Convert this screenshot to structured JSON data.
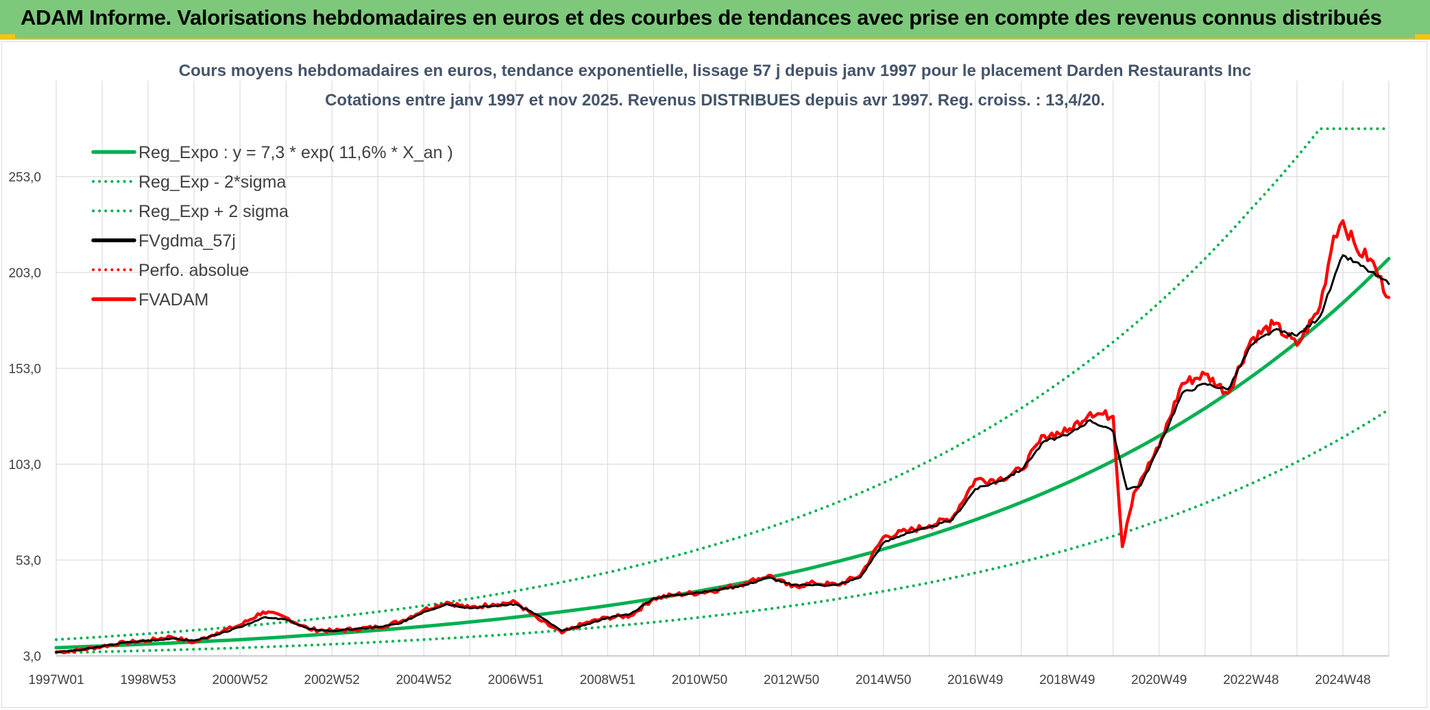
{
  "banner": {
    "title": "ADAM Informe. Valorisations hebdomadaires en euros et des courbes de tendances avec prise en compte des revenus connus distribués"
  },
  "chart_data": {
    "type": "line",
    "title": "Cours moyens hebdomadaires en euros, tendance exponentielle, lissage 57 j depuis janv 1997 pour le placement Darden Restaurants Inc",
    "subtitle": "Cotations entre janv 1997 et nov 2025. Revenus DISTRIBUES depuis avr 1997. Reg. croiss. : 13,4/20.",
    "xlabel": "",
    "ylabel": "",
    "x_ticks": [
      "1997W01",
      "1998W53",
      "2000W52",
      "2002W52",
      "2004W52",
      "2006W51",
      "2008W51",
      "2010W50",
      "2012W50",
      "2014W50",
      "2016W49",
      "2018W49",
      "2020W49",
      "2022W48",
      "2024W48"
    ],
    "x_tick_positions": [
      1997.0,
      1999.0,
      2001.0,
      2003.0,
      2005.0,
      2007.0,
      2009.0,
      2011.0,
      2013.0,
      2015.0,
      2017.0,
      2019.0,
      2021.0,
      2023.0,
      2025.0
    ],
    "x_range": [
      1997.0,
      2026.0
    ],
    "y_ticks": [
      "3,0",
      "53,0",
      "103,0",
      "153,0",
      "203,0",
      "253,0"
    ],
    "y_tick_values": [
      3,
      53,
      103,
      153,
      203,
      253
    ],
    "ylim": [
      3,
      303
    ],
    "grid": true,
    "legend_position": "top-left",
    "series": [
      {
        "name": "Reg_Expo : y = 7,3 * exp( 11,6% *  X_an )",
        "color": "#00b050",
        "style": "solid",
        "width": 5,
        "x": [
          1997,
          1999,
          2001,
          2003,
          2005,
          2007,
          2009,
          2011,
          2013,
          2015,
          2017,
          2019,
          2021,
          2023,
          2025,
          2026
        ],
        "y": [
          7.3,
          9.2,
          11.5,
          14.6,
          18.4,
          23.2,
          29.2,
          36.9,
          46.5,
          58.7,
          74.0,
          93.3,
          117.7,
          148.5,
          187.2,
          210.3
        ]
      },
      {
        "name": "Reg_Exp - 2*sigma",
        "color": "#00b050",
        "style": "dotted",
        "width": 4,
        "x": [
          1997,
          1999,
          2001,
          2003,
          2005,
          2007,
          2009,
          2011,
          2013,
          2015,
          2017,
          2019,
          2021,
          2023,
          2025,
          2026
        ],
        "y": [
          4.6,
          5.8,
          7.2,
          9.1,
          11.5,
          14.5,
          18.3,
          23.1,
          29.1,
          36.7,
          46.3,
          58.3,
          73.6,
          92.8,
          117.0,
          131.5
        ]
      },
      {
        "name": "Reg_Exp + 2 sigma",
        "color": "#00b050",
        "style": "dotted",
        "width": 4,
        "x": [
          1997,
          1999,
          2001,
          2003,
          2005,
          2007,
          2009,
          2011,
          2013,
          2015,
          2017,
          2019,
          2021,
          2023,
          2024.5,
          2026
        ],
        "y": [
          11.5,
          14.6,
          18.4,
          23.2,
          29.2,
          36.9,
          46.5,
          58.7,
          74.0,
          93.3,
          117.7,
          148.5,
          187.2,
          236.1,
          278.0,
          278.0
        ]
      },
      {
        "name": "FVgdma_57j",
        "color": "#000000",
        "style": "solid",
        "width": 3,
        "x": [
          1997,
          1997.5,
          1998,
          1998.5,
          1999,
          1999.5,
          2000,
          2000.5,
          2001,
          2001.5,
          2002,
          2002.5,
          2003,
          2003.5,
          2004,
          2004.5,
          2005,
          2005.5,
          2006,
          2006.5,
          2007,
          2007.5,
          2008,
          2008.5,
          2009,
          2009.5,
          2010,
          2010.5,
          2011,
          2011.5,
          2012,
          2012.5,
          2013,
          2013.5,
          2014,
          2014.5,
          2015,
          2015.5,
          2016,
          2016.5,
          2017,
          2017.5,
          2018,
          2018.5,
          2019,
          2019.5,
          2020,
          2020.3,
          2020.6,
          2021,
          2021.5,
          2022,
          2022.5,
          2023,
          2023.5,
          2024,
          2024.5,
          2025,
          2025.5,
          2026
        ],
        "y": [
          5,
          6,
          8,
          10,
          11,
          12,
          11,
          14,
          18,
          23,
          22,
          17,
          16,
          17,
          18,
          20,
          26,
          30,
          28,
          29,
          30,
          24,
          16,
          19,
          23,
          25,
          33,
          35,
          36,
          38,
          40,
          44,
          40,
          40,
          40,
          44,
          62,
          67,
          70,
          74,
          90,
          94,
          100,
          115,
          118,
          126,
          120,
          90,
          92,
          112,
          140,
          145,
          142,
          165,
          173,
          170,
          180,
          212,
          205,
          197
        ]
      },
      {
        "name": "Perfo. absolue",
        "color": "#ff0000",
        "style": "dotted",
        "width": 3,
        "x": [],
        "y": []
      },
      {
        "name": "FVADAM",
        "color": "#ff0000",
        "style": "solid",
        "width": 4.5,
        "x": [
          1997,
          1997.5,
          1998,
          1998.5,
          1999,
          1999.5,
          2000,
          2000.5,
          2001,
          2001.5,
          2002,
          2002.5,
          2003,
          2003.5,
          2004,
          2004.5,
          2005,
          2005.5,
          2006,
          2006.5,
          2007,
          2007.5,
          2008,
          2008.5,
          2009,
          2009.5,
          2010,
          2010.5,
          2011,
          2011.5,
          2012,
          2012.5,
          2013,
          2013.5,
          2014,
          2014.5,
          2015,
          2015.5,
          2016,
          2016.5,
          2017,
          2017.5,
          2018,
          2018.5,
          2019,
          2019.5,
          2020,
          2020.2,
          2020.3,
          2020.45,
          2020.6,
          2021,
          2021.5,
          2022,
          2022.5,
          2023,
          2023.5,
          2024,
          2024.5,
          2024.8,
          2025,
          2025.3,
          2025.6,
          2026
        ],
        "y": [
          5,
          6,
          8,
          10,
          11,
          13,
          10,
          15,
          19,
          26,
          23,
          17,
          16,
          17,
          18,
          21,
          27,
          31,
          28,
          30,
          31,
          22,
          15,
          20,
          23,
          24,
          33,
          35,
          36,
          38,
          41,
          45,
          39,
          41,
          40,
          45,
          65,
          68,
          71,
          75,
          95,
          95,
          100,
          118,
          120,
          130,
          128,
          60,
          72,
          88,
          95,
          112,
          145,
          150,
          140,
          168,
          176,
          165,
          185,
          222,
          230,
          215,
          210,
          190
        ]
      }
    ]
  }
}
